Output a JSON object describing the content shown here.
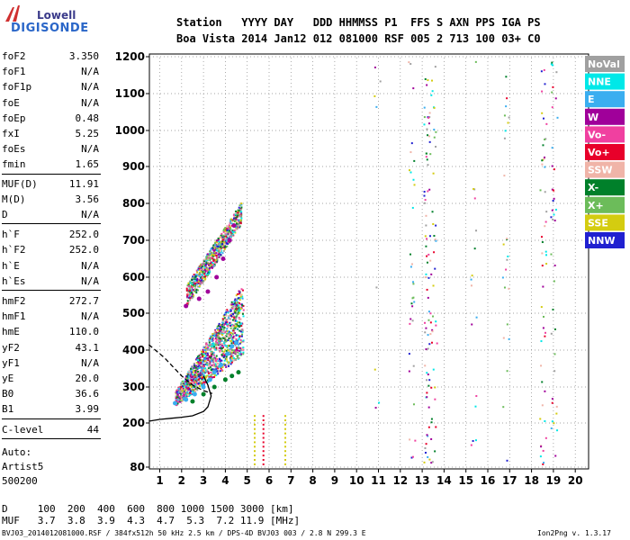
{
  "logo": {
    "top": "Lowell",
    "bottom": "DIGISONDE"
  },
  "header": {
    "line1": "Station   YYYY DAY   DDD HHMMSS P1  FFS S AXN PPS IGA PS",
    "line2": "Boa Vista 2014 Jan12 012 081000 RSF 005 2 713 100 03+ C0"
  },
  "params_a": [
    {
      "name": "foF2",
      "value": "3.350"
    },
    {
      "name": "foF1",
      "value": "N/A"
    },
    {
      "name": "foF1p",
      "value": "N/A"
    },
    {
      "name": "foE",
      "value": "N/A"
    },
    {
      "name": "foEp",
      "value": "0.48"
    },
    {
      "name": "fxI",
      "value": "5.25"
    },
    {
      "name": "foEs",
      "value": "N/A"
    },
    {
      "name": "fmin",
      "value": "1.65"
    }
  ],
  "params_b": [
    {
      "name": "MUF(D)",
      "value": "11.91"
    },
    {
      "name": "M(D)",
      "value": "3.56"
    },
    {
      "name": "D",
      "value": "N/A"
    }
  ],
  "params_c": [
    {
      "name": "h`F",
      "value": "252.0"
    },
    {
      "name": "h`F2",
      "value": "252.0"
    },
    {
      "name": "h`E",
      "value": "N/A"
    },
    {
      "name": "h`Es",
      "value": "N/A"
    }
  ],
  "params_d": [
    {
      "name": "hmF2",
      "value": "272.7"
    },
    {
      "name": "hmF1",
      "value": "N/A"
    },
    {
      "name": "hmE",
      "value": "110.0"
    },
    {
      "name": "yF2",
      "value": "43.1"
    },
    {
      "name": "yF1",
      "value": "N/A"
    },
    {
      "name": "yE",
      "value": "20.0"
    },
    {
      "name": "B0",
      "value": "36.6"
    },
    {
      "name": "B1",
      "value": "3.99"
    }
  ],
  "c_level": {
    "name": "C-level",
    "value": "44"
  },
  "autoscale": [
    "Auto:",
    "Artist5",
    "500200"
  ],
  "footer": {
    "d_line": "D     100  200  400  600  800 1000 1500 3000 [km]",
    "muf_line": "MUF   3.7  3.8  3.9  4.3  4.7  5.3  7.2 11.9 [MHz]",
    "file_line": "BVJ03_2014012081000.RSF / 384fx512h 50 kHz 2.5 km / DPS-4D BVJ03 003 / 2.8 N 299.3 E",
    "version": "Ion2Png v. 1.3.17"
  },
  "legend": [
    {
      "label": "NoVal",
      "color": "#a0a0a0"
    },
    {
      "label": "NNE",
      "color": "#00e8e8"
    },
    {
      "label": "E",
      "color": "#3aaef0"
    },
    {
      "label": "W",
      "color": "#a0009a"
    },
    {
      "label": "Vo-",
      "color": "#f040a0"
    },
    {
      "label": "Vo+",
      "color": "#e8002a"
    },
    {
      "label": "SSW",
      "color": "#f0b4a8"
    },
    {
      "label": "X-",
      "color": "#00802a"
    },
    {
      "label": "X+",
      "color": "#6cbc5a"
    },
    {
      "label": "SSE",
      "color": "#d4cc10"
    },
    {
      "label": "NNW",
      "color": "#2020d0"
    }
  ],
  "chart_data": {
    "type": "scatter",
    "title": "",
    "xlabel": "",
    "ylabel": "",
    "x_ticks": [
      1,
      2,
      3,
      4,
      5,
      6,
      7,
      8,
      9,
      10,
      11,
      12,
      13,
      14,
      15,
      16,
      17,
      18,
      19,
      20
    ],
    "y_ticks": [
      80,
      200,
      300,
      400,
      500,
      600,
      700,
      800,
      900,
      1000,
      1100,
      1200
    ],
    "xlim": [
      0.5,
      20.5
    ],
    "ylim": [
      80,
      1210
    ],
    "y_scale": "nonlinear (height km, compressed near bottom)",
    "grid": "dotted",
    "series": [
      {
        "legend": "E",
        "trace": "O-mode F2 trace",
        "x": [
          1.7,
          2.2,
          2.6,
          3.0,
          3.3,
          3.5,
          3.8,
          4.1,
          4.3,
          4.5
        ],
        "y": [
          255,
          265,
          280,
          300,
          320,
          340,
          360,
          390,
          410,
          420
        ]
      },
      {
        "legend": "W",
        "trace": "Multiple-hop echoes",
        "x": [
          2.2,
          2.8,
          3.2,
          3.6,
          3.9,
          4.2,
          4.4
        ],
        "y": [
          520,
          540,
          560,
          600,
          650,
          700,
          740
        ]
      },
      {
        "legend": "X-",
        "trace": "X-mode trace",
        "x": [
          2.5,
          3.0,
          3.5,
          4.0,
          4.3,
          4.6
        ],
        "y": [
          260,
          280,
          300,
          320,
          330,
          340
        ]
      }
    ],
    "profile_curves": [
      {
        "style": "solid",
        "x": [
          0.5,
          1.0,
          1.5,
          2.0,
          2.5,
          3.0,
          3.2,
          3.35,
          3.2,
          3.0
        ],
        "y": [
          205,
          210,
          213,
          216,
          220,
          232,
          245,
          275,
          305,
          330
        ]
      },
      {
        "style": "dashed",
        "x": [
          0.5,
          0.8,
          1.2,
          1.6,
          2.0,
          2.5,
          3.0,
          3.4
        ],
        "y": [
          415,
          400,
          380,
          355,
          330,
          305,
          290,
          282
        ]
      }
    ]
  }
}
